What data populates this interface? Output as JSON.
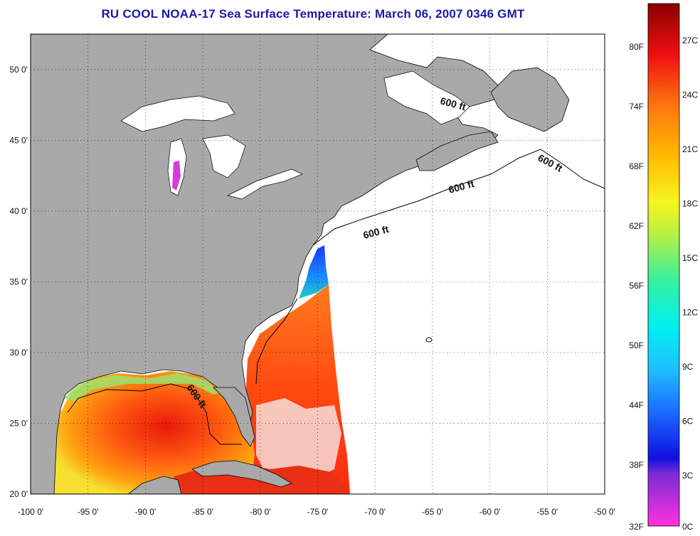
{
  "title": "RU COOL  NOAA-17  Sea Surface Temperature:  March 06, 2007 0346 GMT",
  "map": {
    "lon_range": [
      -100,
      -50
    ],
    "lat_range": [
      20,
      52.5
    ],
    "grid": true,
    "x_ticks": [
      "-100 0'",
      "-95 0'",
      "-90 0'",
      "-85 0'",
      "-80 0'",
      "-75 0'",
      "-70 0'",
      "-65 0'",
      "-60 0'",
      "-55 0'",
      "-50 0'"
    ],
    "y_ticks": [
      "20 0'",
      "25 0'",
      "30 0'",
      "35 0'",
      "40 0'",
      "45 0'",
      "50 0'"
    ],
    "depth_label": "600 ft",
    "land_color": "#a9a9a9",
    "water_color": "#ffffff"
  },
  "colorbar": {
    "fahrenheit_labels": [
      "80F",
      "74F",
      "68F",
      "62F",
      "56F",
      "50F",
      "44F",
      "38F",
      "32F"
    ],
    "celsius_labels": [
      "27C",
      "24C",
      "21C",
      "18C",
      "15C",
      "12C",
      "9C",
      "6C",
      "3C",
      "0C"
    ]
  }
}
